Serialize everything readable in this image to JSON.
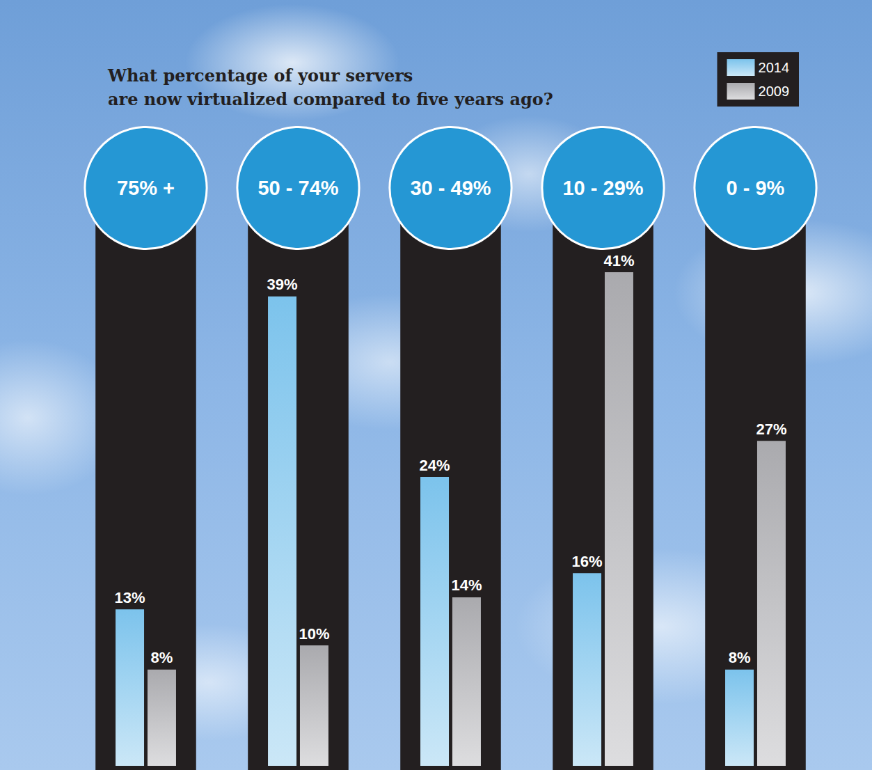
{
  "chart_data": {
    "type": "bar",
    "title": "What percentage of your servers are now virtualized compared to five years ago?",
    "categories": [
      "75% +",
      "50 - 74%",
      "30 - 49%",
      "10 - 29%",
      "0 - 9%"
    ],
    "series": [
      {
        "name": "2014",
        "color": "#7cc3ec",
        "values": [
          13,
          39,
          24,
          16,
          8
        ],
        "value_labels": [
          "13%",
          "39%",
          "24%",
          "16%",
          "8%"
        ]
      },
      {
        "name": "2009",
        "color": "#aaaaae",
        "values": [
          8,
          10,
          14,
          41,
          27
        ],
        "value_labels": [
          "8%",
          "10%",
          "14%",
          "41%",
          "27%"
        ]
      }
    ],
    "ylim": [
      0,
      48
    ],
    "grid": false,
    "legend": "upper right",
    "data_labels": true,
    "tick_labels": "x"
  }
}
